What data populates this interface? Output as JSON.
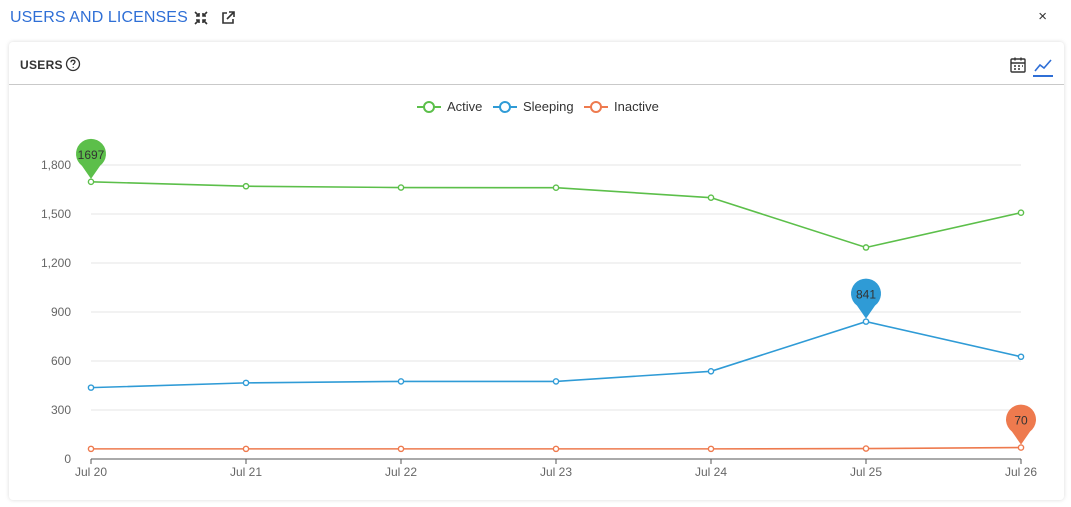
{
  "header": {
    "title": "USERS AND LICENSES",
    "close_label": "×",
    "icons": [
      "collapse-icon",
      "external-link-icon"
    ]
  },
  "card": {
    "title": "USERS",
    "icons": [
      "help-icon",
      "calendar-icon",
      "line-chart-icon"
    ]
  },
  "colors": {
    "accent": "#2f6fd6",
    "active": "#5cbf4a",
    "sleeping": "#2f9bd6",
    "inactive": "#ee7a4e"
  },
  "chart_data": {
    "type": "line",
    "categories": [
      "Jul 20",
      "Jul 21",
      "Jul 22",
      "Jul 23",
      "Jul 24",
      "Jul 25",
      "Jul 26"
    ],
    "series": [
      {
        "name": "Active",
        "values": [
          1697,
          1670,
          1662,
          1661,
          1600,
          1295,
          1508
        ],
        "color": "#5cbf4a"
      },
      {
        "name": "Sleeping",
        "values": [
          437,
          466,
          475,
          475,
          537,
          841,
          626
        ],
        "color": "#2f9bd6"
      },
      {
        "name": "Inactive",
        "values": [
          62,
          62,
          62,
          62,
          62,
          64,
          70
        ],
        "color": "#ee7a4e"
      }
    ],
    "yticks": [
      "0",
      "300",
      "600",
      "900",
      "1,200",
      "1,500",
      "1,800"
    ],
    "ylim": [
      0,
      1800
    ],
    "markers": [
      {
        "series": 0,
        "index": 0,
        "label": "1697"
      },
      {
        "series": 1,
        "index": 5,
        "label": "841"
      },
      {
        "series": 2,
        "index": 6,
        "label": "70"
      }
    ],
    "legend": "top-center",
    "grid": true
  }
}
